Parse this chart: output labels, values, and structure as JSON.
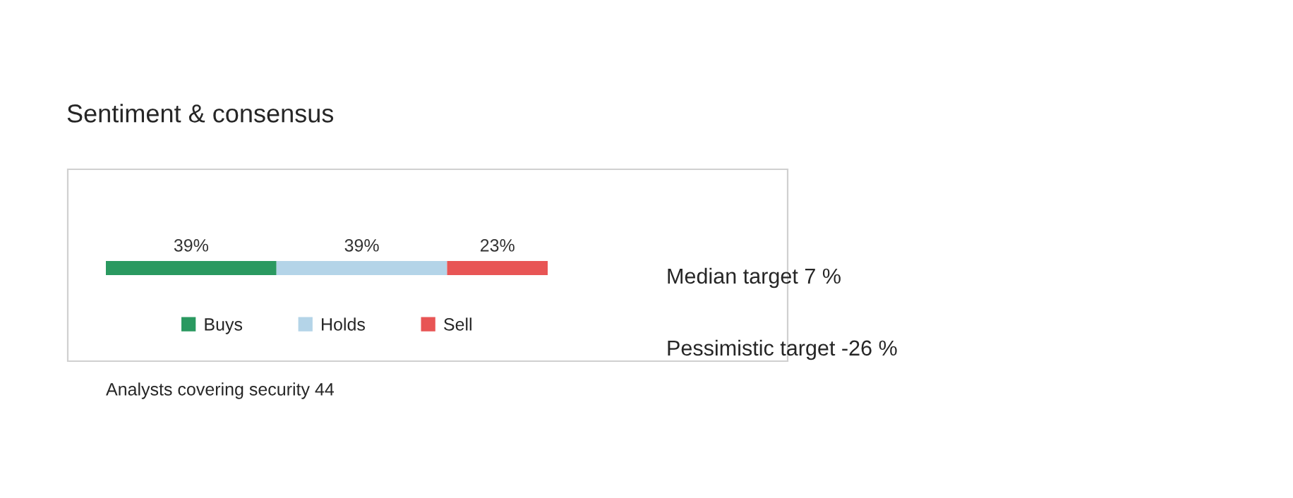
{
  "chart_data": {
    "type": "bar",
    "orientation": "horizontal",
    "stacked": true,
    "title": "Sentiment & consensus",
    "categories": [
      null
    ],
    "series": [
      {
        "name": "Buys",
        "color": "#2a9960",
        "values": [
          39
        ],
        "value_labels": [
          "39%"
        ]
      },
      {
        "name": "Holds",
        "color": "#b4d4e8",
        "values": [
          39
        ],
        "value_labels": [
          "39%"
        ]
      },
      {
        "name": "Sell",
        "color": "#e85555",
        "values": [
          23
        ],
        "value_labels": [
          "23%"
        ]
      }
    ],
    "legend": "bottom",
    "tick_labels": false,
    "annotations": [
      "Median target 7 %",
      "Pessimistic target -26 %",
      "Analysts covering security 44"
    ]
  }
}
